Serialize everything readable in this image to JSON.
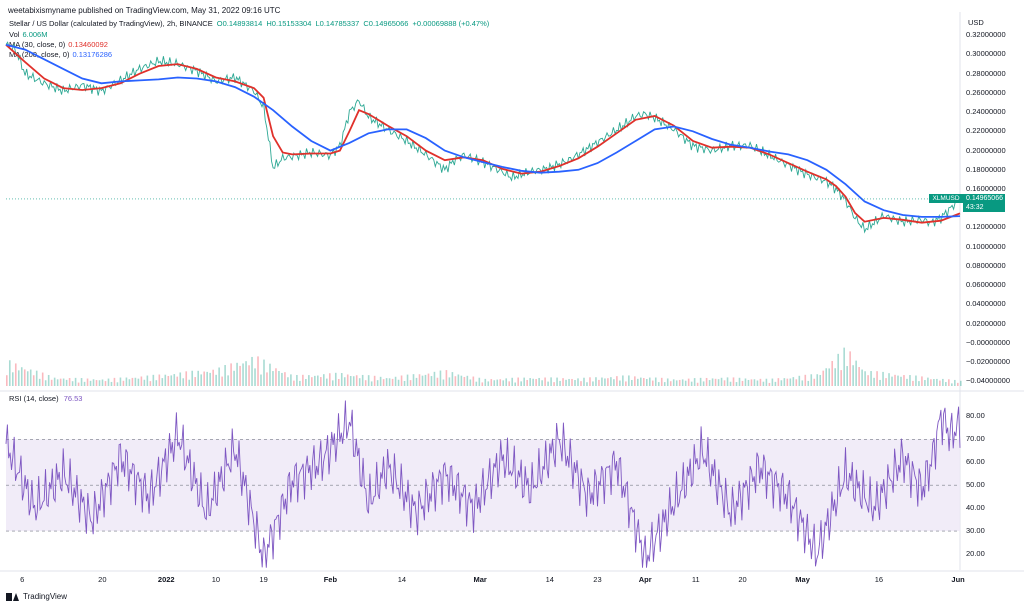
{
  "header": {
    "published": "weetabixismyname published on TradingView.com, May 31, 2022 09:16 UTC"
  },
  "ohlc": {
    "title": "Stellar / US Dollar (calculated by TradingView), 2h, BINANCE",
    "o": "O0.14893814",
    "h": "H0.15153304",
    "l": "L0.14785337",
    "c": "C0.14965066",
    "change": "+0.00069888 (+0.47%)"
  },
  "legend": {
    "vol": {
      "label": "Vol",
      "value": "6.006M"
    },
    "ma30": {
      "label": "MA (30, close, 0)",
      "value": "0.13460092"
    },
    "ma200": {
      "label": "MA (200, close, 0)",
      "value": "0.13176286"
    }
  },
  "rsi_legend": {
    "label": "RSI (14, close)",
    "value": "76.53"
  },
  "price_tag": {
    "symbol": "XLMUSD",
    "price": "0.14965066",
    "countdown": "43:32"
  },
  "footer": {
    "brand": "TradingView"
  },
  "colors": {
    "up": "#089981",
    "down": "#f23645",
    "ma30": "#e0312b",
    "ma200": "#2962ff",
    "rsi": "#7e57c2",
    "rsi_band": "#ede7f6"
  },
  "chart_data": {
    "type": "line",
    "price_axis": {
      "unit": "USD",
      "ticks": [
        "0.32000000",
        "0.30000000",
        "0.28000000",
        "0.26000000",
        "0.24000000",
        "0.22000000",
        "0.20000000",
        "0.18000000",
        "0.16000000",
        "0.12000000",
        "0.10000000",
        "0.08000000",
        "0.06000000",
        "0.04000000",
        "0.02000000",
        "−0.00000000",
        "−0.02000000",
        "−0.04000000"
      ],
      "tick_values": [
        0.32,
        0.3,
        0.28,
        0.26,
        0.24,
        0.22,
        0.2,
        0.18,
        0.16,
        0.12,
        0.1,
        0.08,
        0.06,
        0.04,
        0.02,
        0.0,
        -0.02,
        -0.04
      ],
      "range": [
        -0.047,
        0.34
      ]
    },
    "x_axis": {
      "labels": [
        "6",
        "20",
        "2022",
        "10",
        "19",
        "Feb",
        "14",
        "Mar",
        "14",
        "23",
        "Apr",
        "11",
        "20",
        "May",
        "16",
        "Jun"
      ],
      "positions": [
        0.017,
        0.101,
        0.168,
        0.22,
        0.27,
        0.34,
        0.415,
        0.497,
        0.57,
        0.62,
        0.67,
        0.723,
        0.772,
        0.835,
        0.915,
        0.998
      ],
      "bold": [
        "2022",
        "Feb",
        "Mar",
        "Apr",
        "May",
        "Jun"
      ]
    },
    "series": [
      {
        "name": "Stellar / US Dollar",
        "x": [
          0,
          0.01,
          0.02,
          0.04,
          0.06,
          0.08,
          0.1,
          0.12,
          0.14,
          0.16,
          0.18,
          0.2,
          0.22,
          0.24,
          0.26,
          0.27,
          0.28,
          0.29,
          0.3,
          0.32,
          0.34,
          0.35,
          0.36,
          0.37,
          0.38,
          0.4,
          0.42,
          0.44,
          0.46,
          0.47,
          0.48,
          0.5,
          0.52,
          0.53,
          0.55,
          0.57,
          0.59,
          0.61,
          0.63,
          0.65,
          0.66,
          0.67,
          0.68,
          0.7,
          0.72,
          0.74,
          0.76,
          0.78,
          0.8,
          0.82,
          0.84,
          0.86,
          0.87,
          0.88,
          0.89,
          0.9,
          0.92,
          0.94,
          0.96,
          0.97,
          0.98,
          0.99,
          1.0
        ],
        "values": [
          0.31,
          0.305,
          0.28,
          0.27,
          0.262,
          0.268,
          0.262,
          0.273,
          0.285,
          0.293,
          0.29,
          0.283,
          0.272,
          0.276,
          0.262,
          0.245,
          0.182,
          0.192,
          0.194,
          0.198,
          0.195,
          0.205,
          0.24,
          0.252,
          0.235,
          0.222,
          0.21,
          0.196,
          0.18,
          0.19,
          0.195,
          0.188,
          0.178,
          0.172,
          0.178,
          0.182,
          0.19,
          0.202,
          0.215,
          0.228,
          0.236,
          0.238,
          0.234,
          0.222,
          0.205,
          0.2,
          0.205,
          0.205,
          0.195,
          0.185,
          0.175,
          0.168,
          0.16,
          0.148,
          0.13,
          0.118,
          0.132,
          0.126,
          0.128,
          0.125,
          0.13,
          0.14,
          0.1497
        ]
      },
      {
        "name": "MA (30, close, 0)",
        "x": [
          0,
          0.02,
          0.04,
          0.06,
          0.08,
          0.1,
          0.12,
          0.14,
          0.16,
          0.18,
          0.2,
          0.22,
          0.24,
          0.26,
          0.27,
          0.28,
          0.29,
          0.3,
          0.32,
          0.34,
          0.35,
          0.36,
          0.37,
          0.38,
          0.4,
          0.42,
          0.44,
          0.46,
          0.48,
          0.5,
          0.52,
          0.54,
          0.56,
          0.58,
          0.6,
          0.62,
          0.64,
          0.66,
          0.68,
          0.7,
          0.72,
          0.74,
          0.76,
          0.78,
          0.8,
          0.82,
          0.84,
          0.86,
          0.87,
          0.88,
          0.89,
          0.9,
          0.92,
          0.94,
          0.96,
          0.98,
          1.0
        ],
        "values": [
          0.31,
          0.292,
          0.275,
          0.265,
          0.263,
          0.265,
          0.27,
          0.28,
          0.288,
          0.29,
          0.285,
          0.276,
          0.272,
          0.265,
          0.255,
          0.215,
          0.198,
          0.196,
          0.197,
          0.197,
          0.2,
          0.22,
          0.242,
          0.238,
          0.226,
          0.215,
          0.2,
          0.19,
          0.193,
          0.19,
          0.181,
          0.176,
          0.178,
          0.184,
          0.192,
          0.204,
          0.218,
          0.232,
          0.236,
          0.226,
          0.21,
          0.203,
          0.204,
          0.203,
          0.196,
          0.187,
          0.178,
          0.17,
          0.163,
          0.152,
          0.135,
          0.126,
          0.13,
          0.128,
          0.125,
          0.127,
          0.1346
        ]
      },
      {
        "name": "MA (200, close, 0)",
        "x": [
          0,
          0.02,
          0.04,
          0.06,
          0.08,
          0.1,
          0.12,
          0.14,
          0.16,
          0.18,
          0.2,
          0.22,
          0.24,
          0.26,
          0.28,
          0.3,
          0.32,
          0.34,
          0.36,
          0.38,
          0.4,
          0.42,
          0.44,
          0.46,
          0.48,
          0.5,
          0.52,
          0.54,
          0.56,
          0.58,
          0.6,
          0.62,
          0.64,
          0.66,
          0.68,
          0.7,
          0.72,
          0.74,
          0.76,
          0.78,
          0.8,
          0.82,
          0.84,
          0.86,
          0.88,
          0.9,
          0.92,
          0.94,
          0.96,
          0.98,
          1.0
        ],
        "values": [
          0.31,
          0.305,
          0.295,
          0.285,
          0.275,
          0.27,
          0.272,
          0.273,
          0.274,
          0.276,
          0.275,
          0.272,
          0.266,
          0.256,
          0.242,
          0.225,
          0.21,
          0.2,
          0.208,
          0.218,
          0.222,
          0.222,
          0.213,
          0.2,
          0.193,
          0.188,
          0.183,
          0.179,
          0.177,
          0.178,
          0.18,
          0.187,
          0.198,
          0.21,
          0.222,
          0.225,
          0.22,
          0.212,
          0.206,
          0.203,
          0.199,
          0.196,
          0.19,
          0.18,
          0.165,
          0.147,
          0.138,
          0.133,
          0.131,
          0.131,
          0.1318
        ]
      },
      {
        "name": "RSI (14, close)",
        "x": [
          0,
          0.03,
          0.06,
          0.09,
          0.12,
          0.15,
          0.18,
          0.21,
          0.24,
          0.27,
          0.3,
          0.33,
          0.36,
          0.38,
          0.4,
          0.43,
          0.46,
          0.49,
          0.52,
          0.55,
          0.58,
          0.61,
          0.64,
          0.67,
          0.7,
          0.73,
          0.76,
          0.79,
          0.82,
          0.85,
          0.88,
          0.91,
          0.94,
          0.96,
          0.97,
          0.98,
          0.99,
          1.0
        ],
        "values": [
          68,
          40,
          55,
          35,
          62,
          45,
          72,
          38,
          66,
          18,
          52,
          60,
          78,
          42,
          58,
          38,
          55,
          40,
          62,
          48,
          70,
          45,
          60,
          18,
          42,
          65,
          38,
          58,
          45,
          20,
          55,
          40,
          62,
          48,
          60,
          80,
          72,
          76.53
        ]
      }
    ],
    "volume": {
      "x": [
        0.0,
        0.05,
        0.1,
        0.15,
        0.22,
        0.26,
        0.3,
        0.35,
        0.4,
        0.46,
        0.5,
        0.55,
        0.6,
        0.65,
        0.7,
        0.75,
        0.8,
        0.85,
        0.88,
        0.9,
        0.95,
        1.0
      ],
      "values": [
        30,
        10,
        8,
        12,
        20,
        35,
        12,
        15,
        10,
        18,
        8,
        10,
        9,
        12,
        8,
        10,
        8,
        14,
        45,
        18,
        12,
        6
      ]
    },
    "rsi_axis": {
      "ticks": [
        "80.00",
        "70.00",
        "60.00",
        "50.00",
        "40.00",
        "30.00",
        "20.00"
      ],
      "tick_values": [
        80,
        70,
        60,
        50,
        40,
        30,
        20
      ],
      "range": [
        13,
        88
      ],
      "band": [
        30,
        70
      ]
    }
  }
}
